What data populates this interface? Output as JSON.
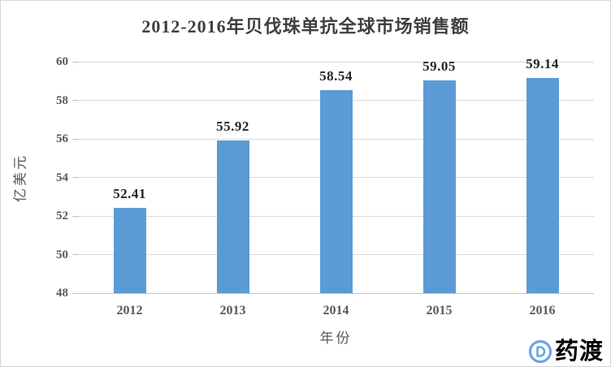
{
  "chart_data": {
    "type": "bar",
    "title": "2012-2016年贝伐珠单抗全球市场销售额",
    "categories": [
      "2012",
      "2013",
      "2014",
      "2015",
      "2016"
    ],
    "values": [
      52.41,
      55.92,
      58.54,
      59.05,
      59.14
    ],
    "value_labels": [
      "52.41",
      "55.92",
      "58.54",
      "59.05",
      "59.14"
    ],
    "xlabel": "年份",
    "ylabel": "亿美元",
    "ylim": [
      48,
      60
    ],
    "yticks": [
      48,
      50,
      52,
      54,
      56,
      58,
      60
    ],
    "grid": true,
    "legend_position": "none",
    "bar_color": "#5b9bd5",
    "gridline_color": "#d9d9d9",
    "title_color": "#3f3f3f",
    "axis_text_color": "#595959",
    "data_label_color": "#262626"
  },
  "watermark": {
    "brand": "药渡",
    "icon": "pharmacodia-d-logo",
    "color": "#6aa4e8"
  }
}
